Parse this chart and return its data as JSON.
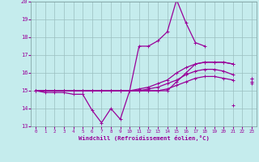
{
  "xlabel": "Windchill (Refroidissement éolien,°C)",
  "x_hours": [
    0,
    1,
    2,
    3,
    4,
    5,
    6,
    7,
    8,
    9,
    10,
    11,
    12,
    13,
    14,
    15,
    16,
    17,
    18,
    19,
    20,
    21,
    22,
    23
  ],
  "line1": [
    15.0,
    14.9,
    14.9,
    14.9,
    14.8,
    14.8,
    13.9,
    13.2,
    14.0,
    13.4,
    15.0,
    17.5,
    17.5,
    17.8,
    18.3,
    20.1,
    18.8,
    17.7,
    17.5,
    null,
    null,
    14.2,
    null,
    15.4
  ],
  "line2": [
    15.0,
    15.0,
    15.0,
    15.0,
    15.0,
    15.0,
    15.0,
    15.0,
    15.0,
    15.0,
    15.0,
    15.0,
    15.0,
    15.0,
    15.0,
    15.5,
    16.0,
    16.5,
    16.6,
    16.6,
    16.6,
    16.5,
    null,
    15.7
  ],
  "line3": [
    15.0,
    15.0,
    15.0,
    15.0,
    15.0,
    15.0,
    15.0,
    15.0,
    15.0,
    15.0,
    15.0,
    15.1,
    15.2,
    15.4,
    15.6,
    16.0,
    16.3,
    16.5,
    16.6,
    16.6,
    16.6,
    16.5,
    null,
    15.7
  ],
  "line4": [
    15.0,
    15.0,
    15.0,
    15.0,
    15.0,
    15.0,
    15.0,
    15.0,
    15.0,
    15.0,
    15.0,
    15.0,
    15.1,
    15.2,
    15.4,
    15.6,
    15.9,
    16.1,
    16.2,
    16.2,
    16.1,
    15.9,
    null,
    15.5
  ],
  "line5": [
    15.0,
    15.0,
    15.0,
    15.0,
    15.0,
    15.0,
    15.0,
    15.0,
    15.0,
    15.0,
    15.0,
    15.0,
    15.0,
    15.0,
    15.1,
    15.3,
    15.5,
    15.7,
    15.8,
    15.8,
    15.7,
    15.6,
    null,
    15.5
  ],
  "ylim": [
    13,
    20
  ],
  "xlim_min": -0.5,
  "xlim_max": 23.5,
  "bg_color": "#c5eced",
  "line_color": "#990099",
  "grid_color": "#9bbfc0",
  "tick_color": "#990099",
  "xlabel_color": "#990099",
  "marker": "+",
  "markersize": 3.0,
  "lw": 0.9
}
